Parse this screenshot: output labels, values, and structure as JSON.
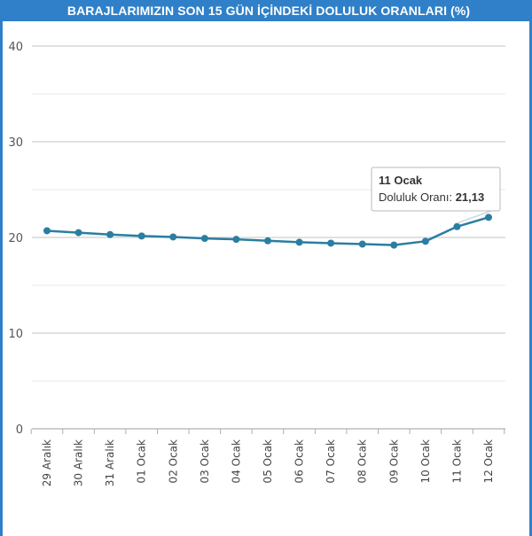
{
  "title": "BARAJLARIMIZIN SON 15 GÜN İÇİNDEKİ DOLULUK ORANLARI (%)",
  "colors": {
    "accent": "#2f80c8",
    "series": "#2b7ea1",
    "grid": "#d8d8d8"
  },
  "tooltip": {
    "title": "11 Ocak",
    "label": "Doluluk Oranı: ",
    "value": "21,13"
  },
  "chart_data": {
    "type": "line",
    "title": "BARAJLARIMIZIN SON 15 GÜN İÇİNDEKİ DOLULUK ORANLARI (%)",
    "xlabel": "",
    "ylabel": "",
    "ylim": [
      0,
      40
    ],
    "yticks": [
      0,
      10,
      20,
      30,
      40
    ],
    "grid": true,
    "legend": "none",
    "categories": [
      "29 Aralık",
      "30 Aralık",
      "31 Aralık",
      "01 Ocak",
      "02 Ocak",
      "03 Ocak",
      "04 Ocak",
      "05 Ocak",
      "06 Ocak",
      "07 Ocak",
      "08 Ocak",
      "09 Ocak",
      "10 Ocak",
      "11 Ocak",
      "12 Ocak"
    ],
    "series": [
      {
        "values": [
          20.7,
          20.5,
          20.3,
          20.15,
          20.05,
          19.9,
          19.8,
          19.65,
          19.5,
          19.4,
          19.3,
          19.2,
          19.6,
          21.13,
          22.1
        ]
      }
    ]
  }
}
